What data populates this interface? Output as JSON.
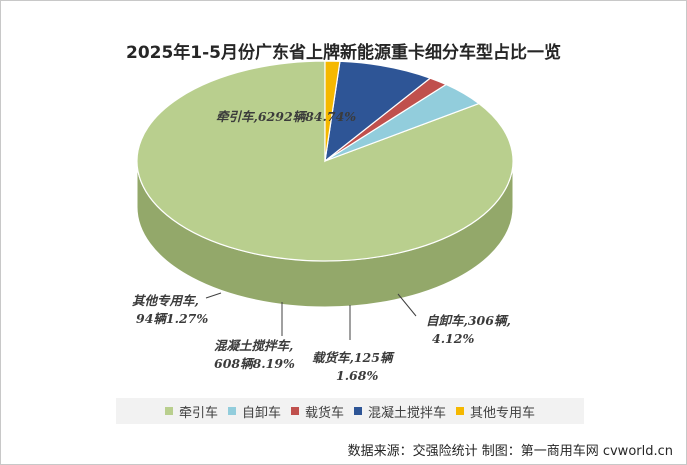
{
  "chart_data": {
    "type": "pie",
    "title": "2025年1-5月份广东省上牌新能源重卡细分车型占比一览",
    "series": [
      {
        "name": "牵引车",
        "value": 6292,
        "percent": 84.74,
        "color": "#b9cf8e",
        "side_color": "#93a86a",
        "label_line1": "牵引车,6292辆84.74%",
        "label_line2": ""
      },
      {
        "name": "自卸车",
        "value": 306,
        "percent": 4.12,
        "color": "#92cddc",
        "side_color": "#6aa6b6",
        "label_line1": "自卸车,306辆,",
        "label_line2": "4.12%"
      },
      {
        "name": "载货车",
        "value": 125,
        "percent": 1.68,
        "color": "#c0504d",
        "side_color": "#8e3432",
        "label_line1": "载货车,125辆",
        "label_line2": "1.68%"
      },
      {
        "name": "混凝土搅拌车",
        "value": 608,
        "percent": 8.19,
        "color": "#2e5596",
        "side_color": "#1f3c6e",
        "label_line1": "混凝土搅拌车,",
        "label_line2": "608辆8.19%"
      },
      {
        "name": "其他专用车",
        "value": 94,
        "percent": 1.27,
        "color": "#f5b800",
        "side_color": "#c59300",
        "label_line1": "其他专用车,",
        "label_line2": "94辆1.27%"
      }
    ],
    "legend_position": "bottom",
    "start_angle_deg": -90,
    "direction": "counterclockwise"
  },
  "source_text": "数据来源：交强险统计  制图：第一商用车网 cvworld.cn"
}
